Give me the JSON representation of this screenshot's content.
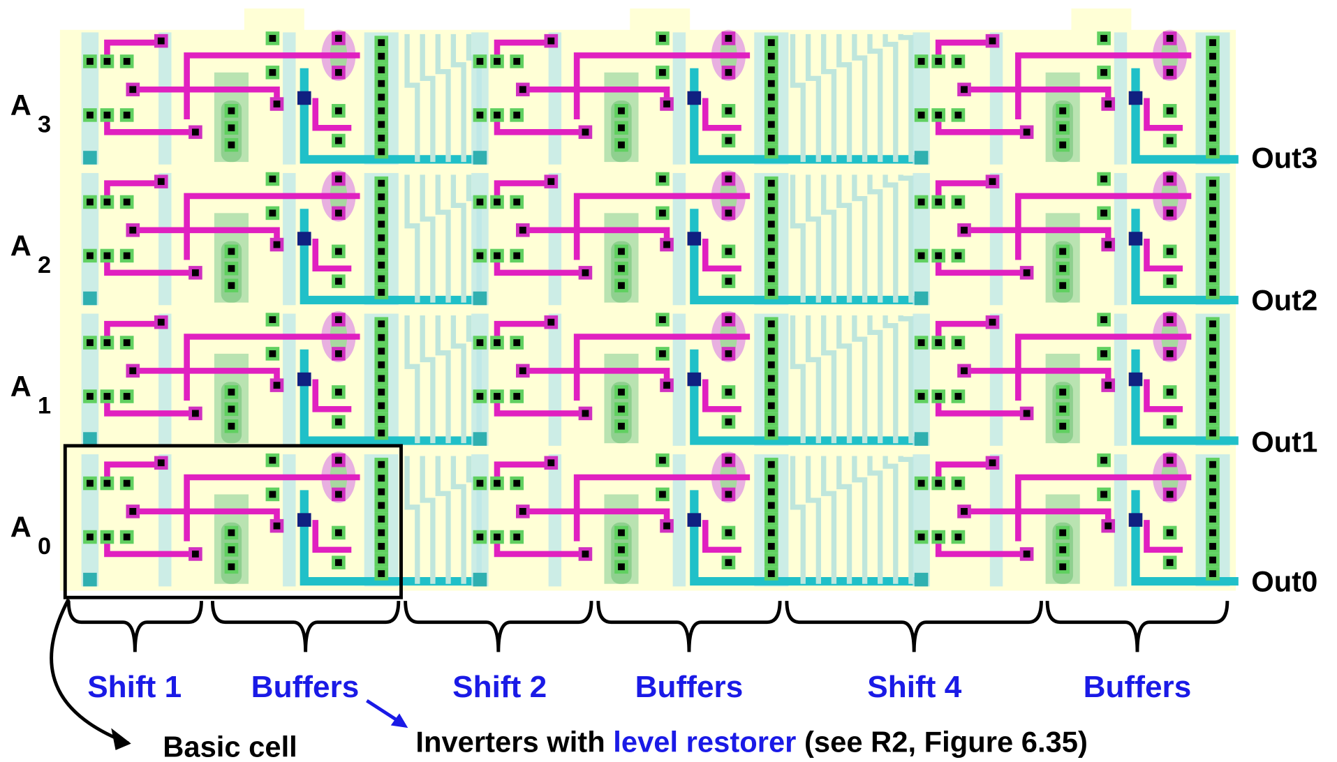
{
  "inputs": [
    {
      "letter": "A",
      "sub": "3"
    },
    {
      "letter": "A",
      "sub": "2"
    },
    {
      "letter": "A",
      "sub": "1"
    },
    {
      "letter": "A",
      "sub": "0"
    }
  ],
  "outputs": [
    "Out3",
    "Out2",
    "Out1",
    "Out0"
  ],
  "sections": [
    "Shift 1",
    "Buffers",
    "Shift 2",
    "Buffers",
    "Shift 4",
    "Buffers"
  ],
  "callouts": {
    "basic_cell": "Basic cell",
    "inverters": {
      "prefix": "Inverters with ",
      "highlight": "level restorer",
      "suffix": " (see R2, Figure 6.35)"
    }
  }
}
